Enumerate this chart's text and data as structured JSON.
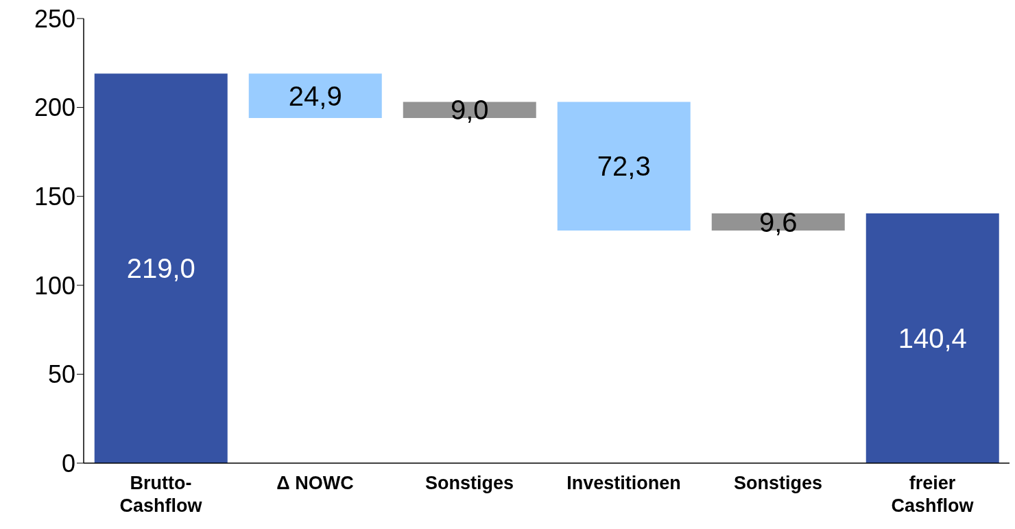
{
  "chart_data": {
    "type": "bar",
    "categories": [
      "Brutto-Cashflow",
      "Δ NOWC",
      "Sonstiges",
      "Investitionen",
      "Sonstiges",
      "freier Cashflow"
    ],
    "values": [
      219.0,
      24.9,
      9.0,
      72.3,
      9.6,
      140.4
    ],
    "base": [
      0,
      194.1,
      194.1,
      130.8,
      130.8,
      0
    ],
    "colors": [
      "#3653a4",
      "#99ccff",
      "#939393",
      "#99ccff",
      "#939393",
      "#3653a4"
    ],
    "value_labels": [
      "219,0",
      "24,9",
      "9,0",
      "72,3",
      "9,6",
      "140,4"
    ],
    "ylim": [
      0,
      250
    ],
    "yticks": [
      0,
      50,
      100,
      150,
      200,
      250
    ],
    "grid": false,
    "legend": false
  }
}
